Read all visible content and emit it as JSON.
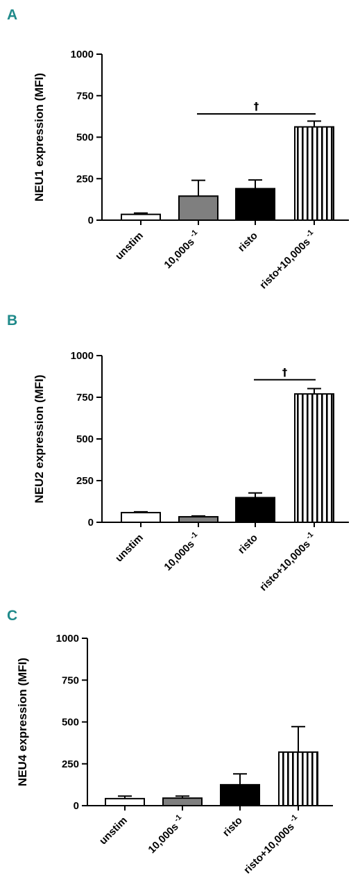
{
  "chart_data": [
    {
      "panel": "A",
      "type": "bar",
      "categories": [
        "unstim",
        "10,000s",
        "risto",
        "risto+10,000s"
      ],
      "category_superscripts": [
        "",
        "-1",
        "",
        "-1"
      ],
      "values": [
        35,
        145,
        190,
        562
      ],
      "errors": [
        8,
        95,
        52,
        35
      ],
      "ylabel": "NEU1 expression (MFI)",
      "ylim": [
        0,
        1000
      ],
      "yticks": [
        0,
        250,
        500,
        750,
        1000
      ],
      "bar_styles": [
        "white",
        "gray",
        "black",
        "striped"
      ],
      "significance": {
        "symbol": "†",
        "from": 1,
        "to": 3,
        "level": 640
      }
    },
    {
      "panel": "B",
      "type": "bar",
      "categories": [
        "unstim",
        "10,000s",
        "risto",
        "risto+10,000s"
      ],
      "category_superscripts": [
        "",
        "-1",
        "",
        "-1"
      ],
      "values": [
        58,
        33,
        148,
        770
      ],
      "errors": [
        5,
        5,
        28,
        32
      ],
      "ylabel": "NEU2 expression (MFI)",
      "ylim": [
        0,
        1000
      ],
      "yticks": [
        0,
        250,
        500,
        750,
        1000
      ],
      "bar_styles": [
        "white",
        "gray",
        "black",
        "striped"
      ],
      "significance": {
        "symbol": "†",
        "from": 2,
        "to": 3,
        "level": 855
      }
    },
    {
      "panel": "C",
      "type": "bar",
      "categories": [
        "unstim",
        "10,000s",
        "risto",
        "risto+10,000s"
      ],
      "category_superscripts": [
        "",
        "-1",
        "",
        "-1"
      ],
      "values": [
        42,
        45,
        125,
        320
      ],
      "errors": [
        15,
        12,
        65,
        152
      ],
      "ylabel": "NEU4 expression (MFI)",
      "ylim": [
        0,
        1000
      ],
      "yticks": [
        0,
        250,
        500,
        750,
        1000
      ],
      "bar_styles": [
        "white",
        "gray",
        "black",
        "striped"
      ]
    }
  ],
  "colors": {
    "panel_letter": "#1f8a8a",
    "gray_bar": "#7f7f7f",
    "black_bar": "#000000"
  }
}
